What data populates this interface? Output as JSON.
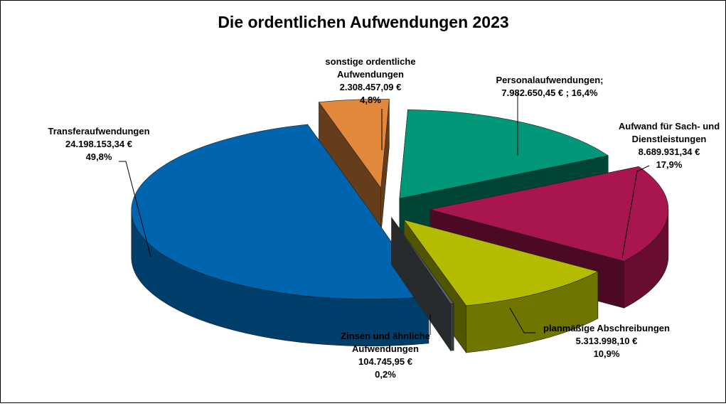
{
  "chart_data": {
    "type": "pie",
    "title": "Die ordentlichen Aufwendungen 2023",
    "slices": [
      {
        "name": "Personalaufwendungen",
        "value": 7982650.45,
        "percent": 16.4,
        "color": "#009878",
        "label_lines": [
          "Personalaufwendungen;",
          "7.982.650,45 € ; 16,4%"
        ]
      },
      {
        "name": "Aufwand für Sach- und Dienstleistungen",
        "value": 8689931.34,
        "percent": 17.9,
        "color": "#A8154F",
        "label_lines": [
          "Aufwand für Sach- und",
          "Dienstleistungen",
          "8.689.931,34 €",
          "17,9%"
        ]
      },
      {
        "name": "planmäßige Abschreibungen",
        "value": 5313998.1,
        "percent": 10.9,
        "color": "#B4BC00",
        "label_lines": [
          "planmäßige Abschreibungen",
          "5.313.998,10 €",
          "10,9%"
        ]
      },
      {
        "name": "Zinsen und ähnliche Aufwendungen",
        "value": 104745.95,
        "percent": 0.2,
        "color": "#596066",
        "label_lines": [
          "Zinsen und ähnliche",
          "Aufwendungen",
          "104.745,95 €",
          "0,2%"
        ]
      },
      {
        "name": "Transferaufwendungen",
        "value": 24198153.34,
        "percent": 49.8,
        "color": "#0064AE",
        "label_lines": [
          "Transferaufwendungen",
          "24.198.153,34 €",
          "49,8%"
        ]
      },
      {
        "name": "sonstige ordentliche Aufwendungen",
        "value": 2308457.09,
        "percent": 4.8,
        "color": "#E2883A",
        "label_lines": [
          "sonstige ordentliche",
          "Aufwendungen",
          "2.308.457,09 €",
          "4,8%"
        ]
      }
    ]
  }
}
